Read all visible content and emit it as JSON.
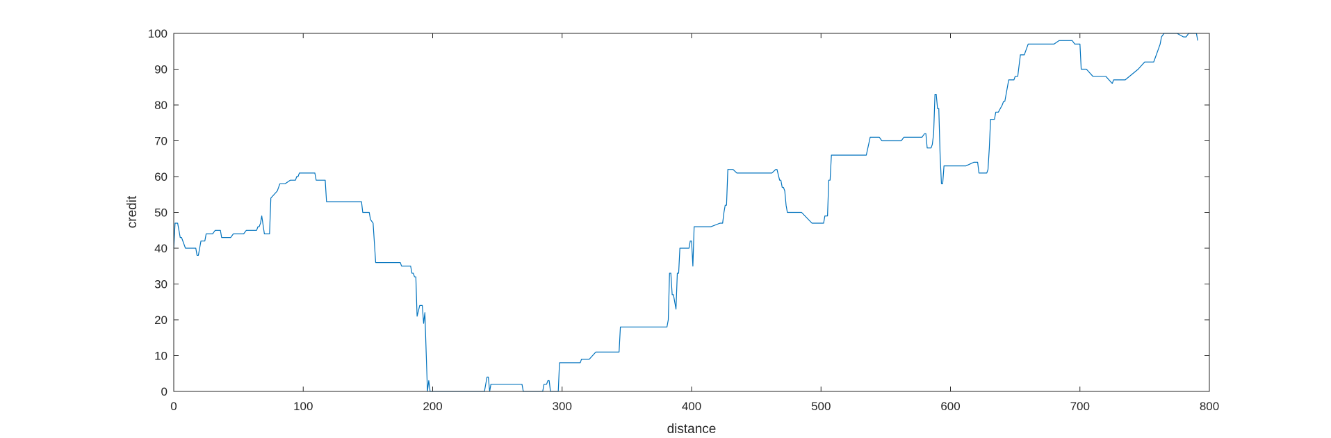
{
  "chart_data": {
    "type": "line",
    "title": "",
    "xlabel": "distance",
    "ylabel": "credit",
    "xlim": [
      0,
      800
    ],
    "ylim": [
      0,
      100
    ],
    "x_ticks": [
      "0",
      "100",
      "200",
      "300",
      "400",
      "500",
      "600",
      "700",
      "800"
    ],
    "y_ticks": [
      "0",
      "10",
      "20",
      "30",
      "40",
      "50",
      "60",
      "70",
      "80",
      "90",
      "100"
    ],
    "grid": false,
    "legend": "none",
    "series": [
      {
        "color": "#0072BD",
        "x": [
          0,
          1,
          3,
          5,
          6,
          9,
          12,
          13,
          14,
          15,
          17,
          18,
          19,
          21,
          22,
          24,
          25,
          26,
          28,
          30,
          32,
          34,
          35,
          36,
          37,
          38,
          40,
          42,
          44,
          46,
          48,
          50,
          52,
          54,
          56,
          58,
          60,
          62,
          63,
          64,
          65,
          66,
          67,
          68,
          70,
          72,
          74,
          75,
          80,
          82,
          85,
          86,
          90,
          94,
          95,
          96,
          97,
          98,
          100,
          103,
          106,
          108,
          109,
          110,
          117,
          118,
          120,
          125,
          130,
          136,
          140,
          145,
          146,
          149,
          150,
          151,
          152,
          154,
          156,
          157,
          158,
          175,
          176,
          180,
          183,
          184,
          185,
          186,
          187,
          188,
          190,
          191,
          192,
          193,
          194,
          196,
          197,
          198,
          200,
          240,
          242,
          243,
          244,
          245,
          250,
          260,
          268,
          269,
          270,
          285,
          286,
          288,
          289,
          290,
          291,
          297,
          298,
          300,
          305,
          314,
          315,
          320,
          321,
          326,
          330,
          344,
          345,
          380,
          381,
          382,
          383,
          384,
          385,
          386,
          388,
          389,
          390,
          391,
          393,
          396,
          398,
          399,
          400,
          401,
          402,
          403,
          404,
          405,
          415,
          422,
          423,
          424,
          425,
          426,
          427,
          428,
          430,
          432,
          435,
          440,
          450,
          460,
          462,
          465,
          466,
          468,
          469,
          470,
          471,
          472,
          473,
          474,
          475,
          478,
          485,
          493,
          494,
          500,
          501,
          502,
          503,
          504,
          505,
          506,
          507,
          508,
          509,
          510,
          515,
          525,
          535,
          538,
          539,
          541,
          545,
          547,
          548,
          550,
          555,
          562,
          564,
          565,
          570,
          578,
          580,
          581,
          582,
          584,
          585,
          586,
          587,
          588,
          589,
          590,
          591,
          592,
          593,
          594,
          595,
          597,
          599,
          600,
          602,
          607,
          612,
          618,
          619,
          621,
          622,
          623,
          624,
          625,
          626,
          628,
          629,
          630,
          631,
          632,
          633,
          634,
          635,
          636,
          637,
          640,
          641,
          642,
          645,
          646,
          647,
          648,
          649,
          650,
          652,
          654,
          656,
          657,
          660,
          661,
          662,
          663,
          665,
          670,
          680,
          684,
          685,
          686,
          690,
          694,
          696,
          698,
          700,
          701,
          702,
          703,
          705,
          710,
          712,
          713,
          714,
          720,
          725,
          726,
          727,
          728,
          729,
          730,
          735,
          745,
          750,
          755,
          756,
          757,
          758,
          760,
          762,
          763,
          765,
          766,
          767,
          770,
          775,
          780,
          781,
          782,
          784,
          785,
          790,
          791
        ],
        "y": [
          40,
          47,
          47,
          43,
          43,
          40,
          40,
          40,
          40,
          40,
          40,
          38,
          38,
          42,
          42,
          42,
          44,
          44,
          44,
          44,
          45,
          45,
          45,
          45,
          43,
          43,
          43,
          43,
          43,
          44,
          44,
          44,
          44,
          44,
          45,
          45,
          45,
          45,
          45,
          45,
          46,
          46,
          47,
          49,
          44,
          44,
          44,
          54,
          56,
          58,
          58,
          58,
          59,
          59,
          60,
          60,
          61,
          61,
          61,
          61,
          61,
          61,
          61,
          59,
          59,
          53,
          53,
          53,
          53,
          53,
          53,
          53,
          50,
          50,
          50,
          50,
          48,
          47,
          36,
          36,
          36,
          36,
          35,
          35,
          35,
          33,
          33,
          32,
          32,
          21,
          24,
          24,
          24,
          19,
          22,
          0,
          3,
          0,
          0,
          0,
          4,
          4,
          0,
          2,
          2,
          2,
          2,
          2,
          0,
          0,
          2,
          2,
          3,
          3,
          0,
          0,
          8,
          8,
          8,
          8,
          9,
          9,
          9,
          11,
          11,
          11,
          18,
          18,
          18,
          20,
          33,
          33,
          27,
          27,
          23,
          33,
          33,
          40,
          40,
          40,
          40,
          42,
          42,
          35,
          46,
          46,
          46,
          46,
          46,
          47,
          47,
          47,
          50,
          52,
          52,
          62,
          62,
          62,
          61,
          61,
          61,
          61,
          61,
          62,
          62,
          59,
          59,
          57,
          57,
          56,
          52,
          50,
          50,
          50,
          50,
          47,
          47,
          47,
          47,
          47,
          49,
          49,
          49,
          59,
          59,
          66,
          66,
          66,
          66,
          66,
          66,
          71,
          71,
          71,
          71,
          70,
          70,
          70,
          70,
          70,
          71,
          71,
          71,
          71,
          72,
          72,
          68,
          68,
          68,
          69,
          72,
          83,
          83,
          79,
          79,
          66,
          58,
          58,
          63,
          63,
          63,
          63,
          63,
          63,
          63,
          64,
          64,
          64,
          61,
          61,
          61,
          61,
          61,
          61,
          62,
          68,
          76,
          76,
          76,
          76,
          78,
          78,
          78,
          80,
          81,
          81,
          87,
          87,
          87,
          87,
          87,
          88,
          88,
          94,
          94,
          94,
          97,
          97,
          97,
          97,
          97,
          97,
          97,
          98,
          98,
          98,
          98,
          98,
          97,
          97,
          97,
          90,
          90,
          90,
          90,
          88,
          88,
          88,
          88,
          88,
          86,
          87,
          87,
          87,
          87,
          87,
          87,
          90,
          92,
          92,
          92,
          92,
          93,
          95,
          97,
          99,
          100,
          100,
          100,
          100,
          100,
          99,
          99,
          99,
          100,
          100,
          100,
          98
        ]
      }
    ]
  }
}
